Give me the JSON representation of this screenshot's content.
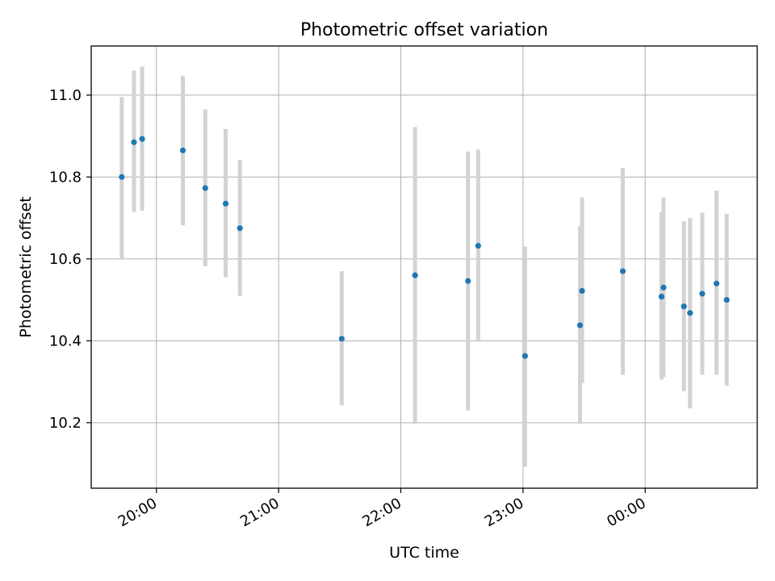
{
  "chart_data": {
    "type": "scatter",
    "title": "Photometric offset variation",
    "xlabel": "UTC time",
    "ylabel": "Photometric offset",
    "grid": true,
    "x_axis": "time",
    "xlim": [
      "19:28",
      "00:55"
    ],
    "ylim": [
      10.04,
      11.12
    ],
    "x_ticks": [
      "20:00",
      "21:00",
      "22:00",
      "23:00",
      "00:00"
    ],
    "y_ticks": [
      "10.2",
      "10.4",
      "10.6",
      "10.8",
      "11.0"
    ],
    "marker_color": "#1f77b4",
    "errorbar_color": "#d3d3d3",
    "series": [
      {
        "points": [
          {
            "t": "19:43",
            "y": 10.8,
            "lo": 10.6,
            "hi": 10.995
          },
          {
            "t": "19:49",
            "y": 10.885,
            "lo": 10.715,
            "hi": 11.06
          },
          {
            "t": "19:53",
            "y": 10.893,
            "lo": 10.718,
            "hi": 11.07
          },
          {
            "t": "20:13",
            "y": 10.865,
            "lo": 10.682,
            "hi": 11.047
          },
          {
            "t": "20:24",
            "y": 10.773,
            "lo": 10.582,
            "hi": 10.965
          },
          {
            "t": "20:34",
            "y": 10.735,
            "lo": 10.555,
            "hi": 10.917
          },
          {
            "t": "20:41",
            "y": 10.675,
            "lo": 10.51,
            "hi": 10.842
          },
          {
            "t": "21:31",
            "y": 10.405,
            "lo": 10.242,
            "hi": 10.57
          },
          {
            "t": "22:07",
            "y": 10.56,
            "lo": 10.197,
            "hi": 10.922
          },
          {
            "t": "22:33",
            "y": 10.546,
            "lo": 10.23,
            "hi": 10.862
          },
          {
            "t": "22:38",
            "y": 10.632,
            "lo": 10.398,
            "hi": 10.867
          },
          {
            "t": "23:01",
            "y": 10.363,
            "lo": 10.092,
            "hi": 10.63
          },
          {
            "t": "23:28",
            "y": 10.438,
            "lo": 10.197,
            "hi": 10.68
          },
          {
            "t": "23:29",
            "y": 10.522,
            "lo": 10.297,
            "hi": 10.75
          },
          {
            "t": "23:49",
            "y": 10.57,
            "lo": 10.317,
            "hi": 10.822
          },
          {
            "t": "00:08",
            "y": 10.508,
            "lo": 10.305,
            "hi": 10.715
          },
          {
            "t": "00:09",
            "y": 10.53,
            "lo": 10.312,
            "hi": 10.75
          },
          {
            "t": "00:19",
            "y": 10.484,
            "lo": 10.277,
            "hi": 10.692
          },
          {
            "t": "00:22",
            "y": 10.468,
            "lo": 10.235,
            "hi": 10.7
          },
          {
            "t": "00:28",
            "y": 10.515,
            "lo": 10.317,
            "hi": 10.713
          },
          {
            "t": "00:35",
            "y": 10.54,
            "lo": 10.317,
            "hi": 10.767
          },
          {
            "t": "00:40",
            "y": 10.5,
            "lo": 10.29,
            "hi": 10.71
          }
        ]
      }
    ]
  }
}
